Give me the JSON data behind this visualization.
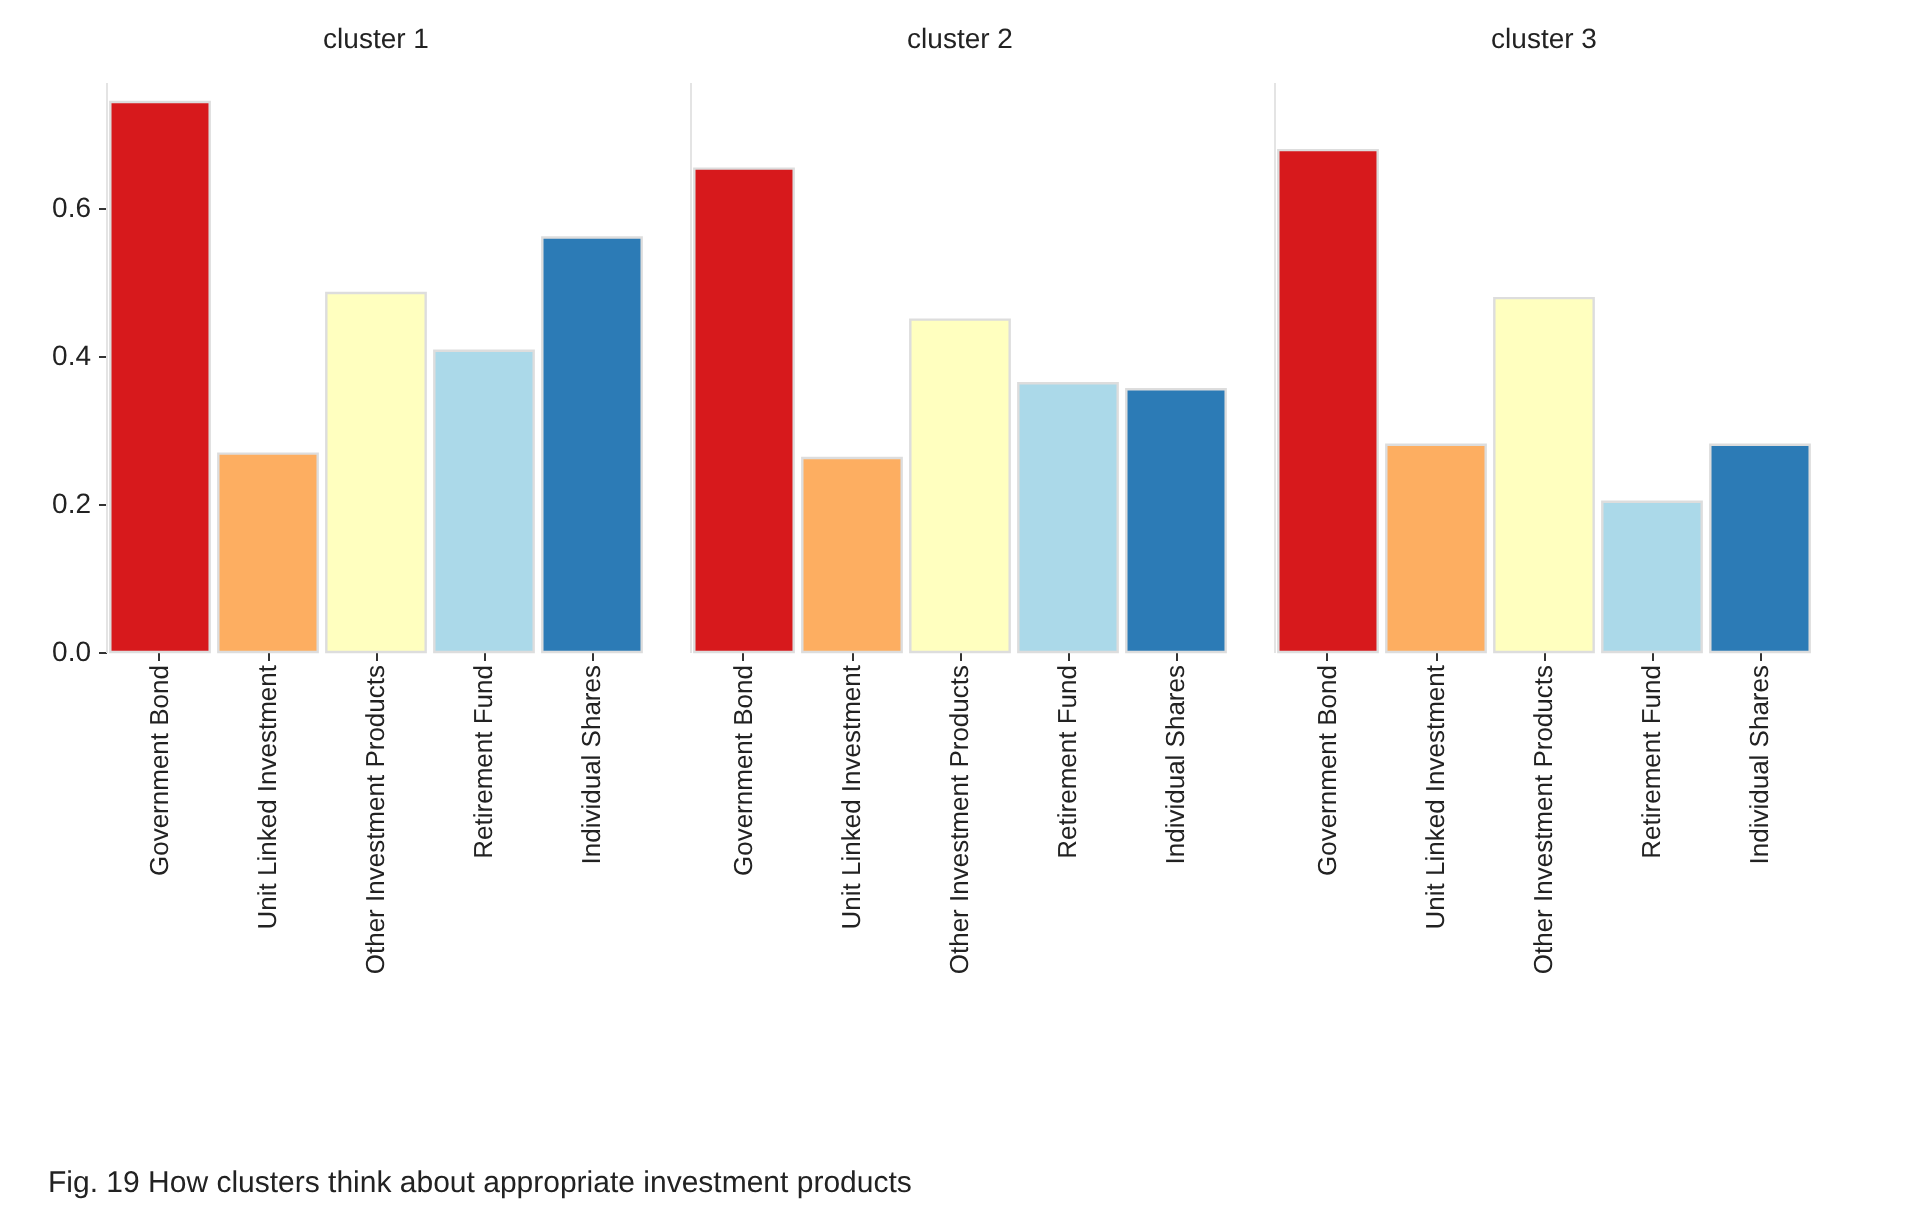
{
  "chart_data": [
    {
      "type": "bar",
      "title": "cluster 1",
      "categories": [
        "Government Bond",
        "Unit Linked Investment",
        "Other Investment Products",
        "Retirement Fund",
        "Individual Shares"
      ],
      "values": [
        0.743,
        0.268,
        0.485,
        0.407,
        0.56
      ],
      "colors": [
        "#d7191c",
        "#fdae61",
        "#ffffbf",
        "#abd9e9",
        "#2c7bb6"
      ],
      "ylim": [
        0,
        0.77
      ],
      "yticks": [
        {
          "value": 0,
          "label": "0.0"
        },
        0.2,
        0.4,
        0.6
      ],
      "annotations": [
        "Fig. 19  How clusters think about appropriate investment products"
      ]
    },
    {
      "type": "bar",
      "title": "cluster 2",
      "categories": [
        "Government Bond",
        "Unit Linked Investment",
        "Other Investment Products",
        "Retirement Fund",
        "Individual Shares"
      ],
      "values": [
        0.653,
        0.262,
        0.449,
        0.363,
        0.355
      ],
      "colors": [
        "#d7191c",
        "#fdae61",
        "#ffffbf",
        "#abd9e9",
        "#2c7bb6"
      ],
      "ylim": [
        0,
        0.77
      ],
      "tick_labels": "x"
    },
    {
      "type": "bar",
      "title": "cluster 3",
      "categories": [
        "Government Bond",
        "Unit Linked Investment",
        "Other Investment Products",
        "Retirement Fund",
        "Individual Shares"
      ],
      "values": [
        0.678,
        0.28,
        0.478,
        0.203,
        0.28
      ],
      "colors": [
        "#d7191c",
        "#fdae61",
        "#ffffbf",
        "#abd9e9",
        "#2c7bb6"
      ],
      "ylim": [
        0,
        0.77
      ],
      "tick_labels": "x"
    }
  ]
}
